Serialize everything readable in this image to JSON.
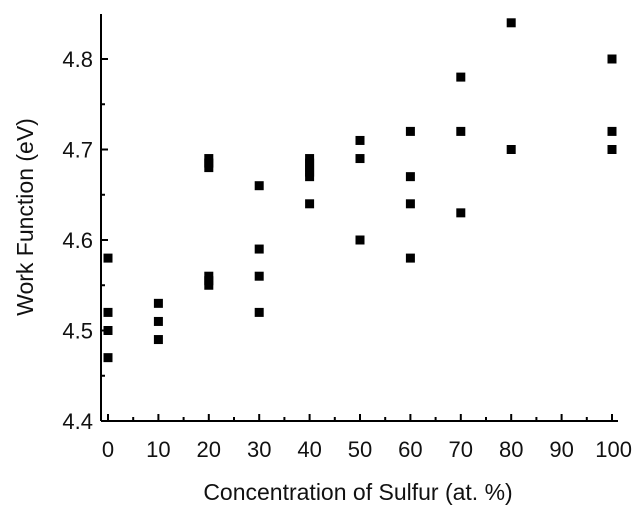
{
  "chart_data": {
    "type": "scatter",
    "title": "",
    "xlabel": "Concentration of Sulfur (at. %)",
    "ylabel": "Work Function (eV)",
    "xlim": [
      -1,
      100
    ],
    "ylim": [
      4.4,
      4.85
    ],
    "x_ticks": [
      0,
      10,
      20,
      30,
      40,
      50,
      60,
      70,
      80,
      90,
      100
    ],
    "x_tick_labels": [
      "0",
      "10",
      "20",
      "30",
      "40",
      "50",
      "60",
      "70",
      "80",
      "90",
      "100"
    ],
    "y_ticks": [
      4.4,
      4.5,
      4.6,
      4.7,
      4.8
    ],
    "y_tick_labels": [
      "4.4",
      "4.5",
      "4.6",
      "4.7",
      "4.8"
    ],
    "grid": false,
    "legend": "none",
    "marker_color": "#000000",
    "marker_shape": "square",
    "series": [
      {
        "x": [
          0,
          0,
          0,
          0,
          10,
          10,
          10,
          20,
          20,
          20,
          20,
          20,
          20,
          30,
          30,
          30,
          30,
          40,
          40,
          40,
          40,
          40,
          40,
          50,
          50,
          50,
          60,
          60,
          60,
          60,
          70,
          70,
          70,
          80,
          80,
          100,
          100,
          100
        ],
        "y": [
          4.58,
          4.52,
          4.5,
          4.47,
          4.53,
          4.51,
          4.49,
          4.69,
          4.685,
          4.68,
          4.56,
          4.555,
          4.55,
          4.66,
          4.59,
          4.56,
          4.52,
          4.69,
          4.685,
          4.68,
          4.675,
          4.67,
          4.64,
          4.71,
          4.69,
          4.6,
          4.72,
          4.67,
          4.64,
          4.58,
          4.78,
          4.72,
          4.63,
          4.84,
          4.7,
          4.8,
          4.72,
          4.7
        ]
      }
    ]
  }
}
